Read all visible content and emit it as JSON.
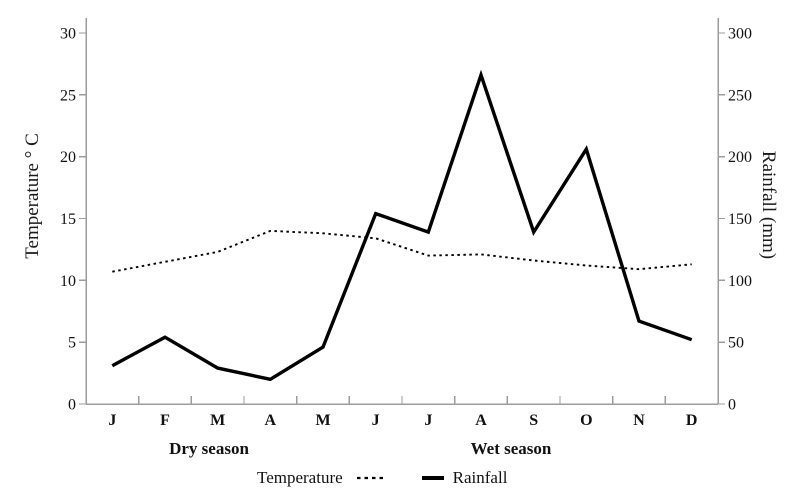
{
  "chart_data": {
    "type": "line",
    "title": "",
    "categories": [
      "J",
      "F",
      "M",
      "A",
      "M",
      "J",
      "J",
      "A",
      "S",
      "O",
      "N",
      "D"
    ],
    "series": [
      {
        "name": "Temperature",
        "axis": "left",
        "style": "dotted",
        "values": [
          10.7,
          11.5,
          12.3,
          14.0,
          13.8,
          13.4,
          12.0,
          12.1,
          11.6,
          11.2,
          10.9,
          11.3
        ]
      },
      {
        "name": "Rainfall",
        "axis": "right",
        "style": "solid",
        "values": [
          31,
          54,
          29,
          20,
          46,
          154,
          139,
          266,
          139,
          206,
          67,
          52
        ]
      }
    ],
    "left_axis": {
      "label": "Temperature ° C",
      "ticks": [
        0,
        5,
        10,
        15,
        20,
        25,
        30
      ],
      "range": [
        0,
        30
      ]
    },
    "right_axis": {
      "label": "Rainfall (mm)",
      "ticks": [
        0,
        50,
        100,
        150,
        200,
        250,
        300
      ],
      "range": [
        0,
        300
      ]
    },
    "grid": false,
    "legend_position": "bottom-center",
    "annotations": [
      {
        "text": "Dry season"
      },
      {
        "text": "Wet season"
      }
    ],
    "legend": [
      {
        "label": "Temperature",
        "style": "dotted"
      },
      {
        "label": "Rainfall",
        "style": "solid"
      }
    ],
    "colors": {
      "line": "#000000",
      "axis": "#9c9c9c",
      "text": "#111111"
    }
  }
}
